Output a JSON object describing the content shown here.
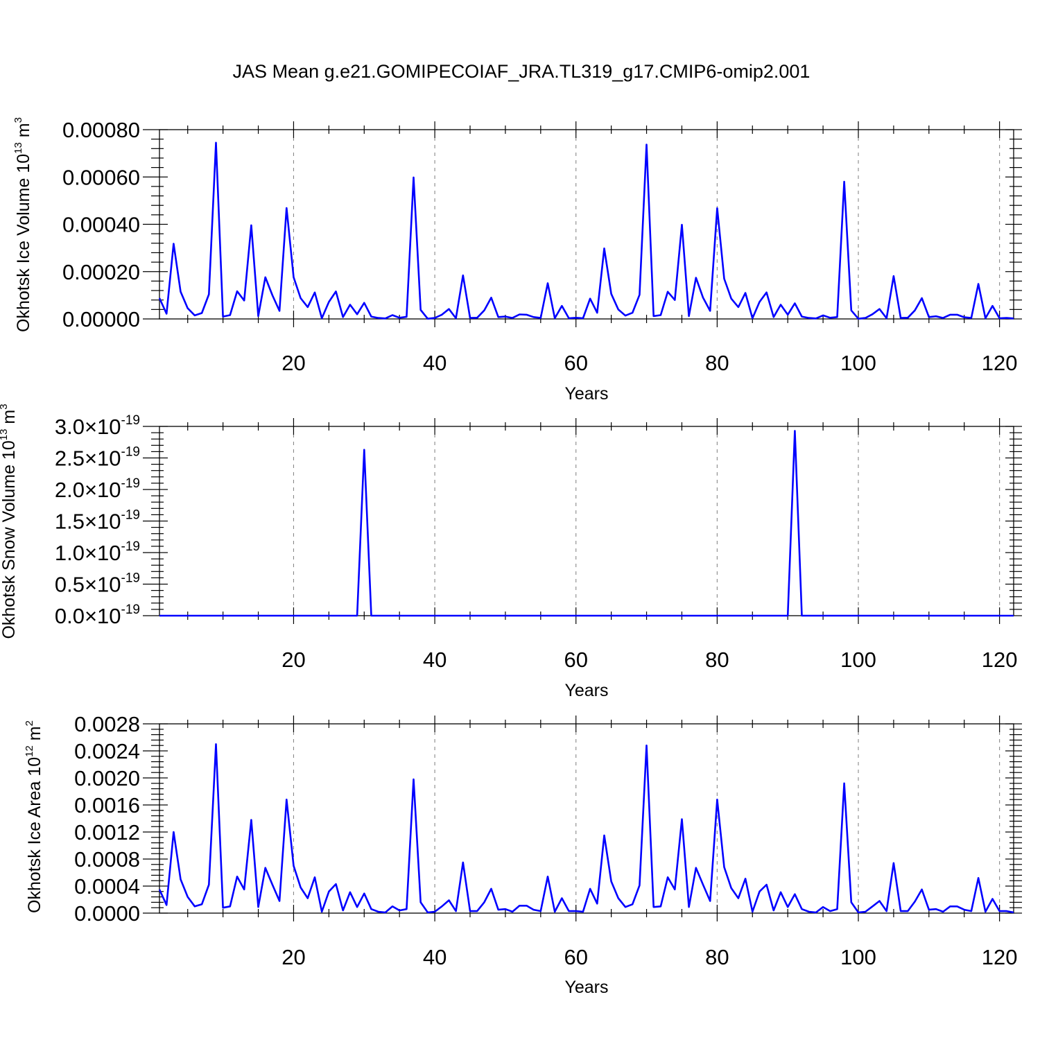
{
  "title": "JAS Mean g.e21.GOMIPECOIAF_JRA.TL319_g17.CMIP6-omip2.001",
  "series_color": "#0000ff",
  "chart_data": [
    {
      "type": "line",
      "ylabel": "Okhotsk Ice Volume 10",
      "ylabel_exponent": "13",
      "ylabel_unit": "m",
      "ylabel_unit_exponent": "3",
      "xlabel": "Years",
      "xlim": [
        1,
        122
      ],
      "ylim": [
        0,
        0.0008
      ],
      "x_ticks": [
        20,
        40,
        60,
        80,
        100,
        120
      ],
      "x_tick_labels": [
        "20",
        "40",
        "60",
        "80",
        "100",
        "120"
      ],
      "y_ticks": [
        0,
        0.0002,
        0.0004,
        0.0006,
        0.0008
      ],
      "y_tick_labels": [
        "0.00000",
        "0.00020",
        "0.00040",
        "0.00060",
        "0.00080"
      ],
      "y_tick_exponent": "",
      "grid": "vertical dashed at x tick positions",
      "x": [
        1,
        2,
        3,
        4,
        5,
        6,
        7,
        8,
        9,
        10,
        11,
        12,
        13,
        14,
        15,
        16,
        17,
        18,
        19,
        20,
        21,
        22,
        23,
        24,
        25,
        26,
        27,
        28,
        29,
        30,
        31,
        32,
        33,
        34,
        35,
        36,
        37,
        38,
        39,
        40,
        41,
        42,
        43,
        44,
        45,
        46,
        47,
        48,
        49,
        50,
        51,
        52,
        53,
        54,
        55,
        56,
        57,
        58,
        59,
        60,
        61,
        62,
        63,
        64,
        65,
        66,
        67,
        68,
        69,
        70,
        71,
        72,
        73,
        74,
        75,
        76,
        77,
        78,
        79,
        80,
        81,
        82,
        83,
        84,
        85,
        86,
        87,
        88,
        89,
        90,
        91,
        92,
        93,
        94,
        95,
        96,
        97,
        98,
        99,
        100,
        101,
        102,
        103,
        104,
        105,
        106,
        107,
        108,
        109,
        110,
        111,
        112,
        113,
        114,
        115,
        116,
        117,
        118,
        119,
        120,
        121,
        122
      ],
      "y": [
        8.8e-05,
        2.2e-05,
        0.000318,
        0.000115,
        4.5e-05,
        1.5e-05,
        2.5e-05,
        0.000104,
        0.000745,
        1e-05,
        1.6e-05,
        0.000117,
        7.8e-05,
        0.000396,
        1.2e-05,
        0.000176,
        0.0001,
        3.4e-05,
        0.000469,
        0.000176,
        8.8e-05,
        5e-05,
        0.000112,
        3e-06,
        7.2e-05,
        0.000116,
        8e-06,
        6e-05,
        2e-05,
        6.8e-05,
        1e-05,
        4e-06,
        2e-06,
        1.6e-05,
        5e-06,
        9e-06,
        0.000598,
        3.8e-05,
        1e-06,
        4e-06,
        1.8e-05,
        4.2e-05,
        3e-06,
        0.000184,
        4e-06,
        5e-06,
        3.6e-05,
        9e-05,
        8e-06,
        1e-05,
        4e-06,
        1.9e-05,
        1.8e-05,
        8e-06,
        4e-06,
        0.000151,
        3e-06,
        5.5e-05,
        3e-06,
        5e-06,
        3e-06,
        8.6e-05,
        2.6e-05,
        0.000298,
        0.000106,
        4e-05,
        1.4e-05,
        2.6e-05,
        0.000102,
        0.000737,
        1.2e-05,
        1.6e-05,
        0.000115,
        8e-05,
        0.000398,
        1.2e-05,
        0.000174,
        9e-05,
        3.4e-05,
        0.000468,
        0.00017,
        8.6e-05,
        5e-05,
        0.00011,
        3e-06,
        7.2e-05,
        0.000112,
        8e-06,
        6e-05,
        1.8e-05,
        6.6e-05,
        1e-05,
        4e-06,
        2e-06,
        1.5e-05,
        5e-06,
        8e-06,
        0.00058,
        3.6e-05,
        1e-06,
        4e-06,
        2e-05,
        4.2e-05,
        3e-06,
        0.000181,
        4e-06,
        5e-06,
        3.6e-05,
        8.8e-05,
        8e-06,
        1.1e-05,
        4e-06,
        1.8e-05,
        1.8e-05,
        7e-06,
        4e-06,
        0.000148,
        3e-06,
        5.5e-05,
        3e-06,
        4e-06,
        2e-06
      ]
    },
    {
      "type": "line",
      "ylabel": "Okhotsk Snow Volume 10",
      "ylabel_exponent": "13",
      "ylabel_unit": "m",
      "ylabel_unit_exponent": "3",
      "xlabel": "Years",
      "xlim": [
        1,
        122
      ],
      "ylim": [
        0,
        3e-19
      ],
      "x_ticks": [
        20,
        40,
        60,
        80,
        100,
        120
      ],
      "x_tick_labels": [
        "20",
        "40",
        "60",
        "80",
        "100",
        "120"
      ],
      "y_ticks": [
        0,
        5e-20,
        1e-19,
        1.5e-19,
        2e-19,
        2.5e-19,
        3e-19
      ],
      "y_tick_labels": [
        "0.0×10",
        "0.5×10",
        "1.0×10",
        "1.5×10",
        "2.0×10",
        "2.5×10",
        "3.0×10"
      ],
      "y_tick_exponent": "-19",
      "grid": "vertical dashed at x tick positions",
      "x": [
        1,
        29,
        30,
        31,
        90,
        91,
        92,
        122
      ],
      "y": [
        0,
        0,
        2.63e-19,
        0,
        0,
        2.93e-19,
        0,
        0
      ]
    },
    {
      "type": "line",
      "ylabel": "Okhotsk Ice Area 10",
      "ylabel_exponent": "12",
      "ylabel_unit": "m",
      "ylabel_unit_exponent": "2",
      "xlabel": "Years",
      "xlim": [
        1,
        122
      ],
      "ylim": [
        0,
        0.0028
      ],
      "x_ticks": [
        20,
        40,
        60,
        80,
        100,
        120
      ],
      "x_tick_labels": [
        "20",
        "40",
        "60",
        "80",
        "100",
        "120"
      ],
      "y_ticks": [
        0,
        0.0004,
        0.0008,
        0.0012,
        0.0016,
        0.002,
        0.0024,
        0.0028
      ],
      "y_tick_labels": [
        "0.0000",
        "0.0004",
        "0.0008",
        "0.0012",
        "0.0016",
        "0.0020",
        "0.0024",
        "0.0028"
      ],
      "y_tick_exponent": "",
      "grid": "vertical dashed at x tick positions",
      "x": [
        1,
        2,
        3,
        4,
        5,
        6,
        7,
        8,
        9,
        10,
        11,
        12,
        13,
        14,
        15,
        16,
        17,
        18,
        19,
        20,
        21,
        22,
        23,
        24,
        25,
        26,
        27,
        28,
        29,
        30,
        31,
        32,
        33,
        34,
        35,
        36,
        37,
        38,
        39,
        40,
        41,
        42,
        43,
        44,
        45,
        46,
        47,
        48,
        49,
        50,
        51,
        52,
        53,
        54,
        55,
        56,
        57,
        58,
        59,
        60,
        61,
        62,
        63,
        64,
        65,
        66,
        67,
        68,
        69,
        70,
        71,
        72,
        73,
        74,
        75,
        76,
        77,
        78,
        79,
        80,
        81,
        82,
        83,
        84,
        85,
        86,
        87,
        88,
        89,
        90,
        91,
        92,
        93,
        94,
        95,
        96,
        97,
        98,
        99,
        100,
        101,
        102,
        103,
        104,
        105,
        106,
        107,
        108,
        109,
        110,
        111,
        112,
        113,
        114,
        115,
        116,
        117,
        118,
        119,
        120,
        121,
        122
      ],
      "y": [
        0.00035,
        0.00012,
        0.0012,
        0.0005,
        0.00024,
        0.0001,
        0.00013,
        0.00042,
        0.0025,
        8e-05,
        0.0001,
        0.00054,
        0.00035,
        0.00138,
        9e-05,
        0.00067,
        0.00042,
        0.00018,
        0.00168,
        0.0007,
        0.00038,
        0.00022,
        0.00053,
        2e-05,
        0.00032,
        0.00043,
        4e-05,
        0.00031,
        9e-05,
        0.00029,
        6e-05,
        2e-05,
        1e-05,
        0.0001,
        4e-05,
        6e-05,
        0.00198,
        0.00016,
        1e-05,
        2e-05,
        0.0001,
        0.00019,
        3e-05,
        0.00075,
        3e-05,
        3e-05,
        0.00016,
        0.00036,
        5e-05,
        6e-05,
        2e-05,
        0.00011,
        0.00011,
        5e-05,
        3e-05,
        0.00054,
        2e-05,
        0.00022,
        3e-05,
        3e-05,
        2e-05,
        0.00036,
        0.00014,
        0.00115,
        0.00047,
        0.00022,
        9e-05,
        0.00013,
        0.00041,
        0.00248,
        9e-05,
        0.0001,
        0.00053,
        0.00035,
        0.00139,
        9e-05,
        0.00067,
        0.00042,
        0.00018,
        0.00168,
        0.00068,
        0.00037,
        0.00022,
        0.00051,
        2e-05,
        0.00032,
        0.00042,
        4e-05,
        0.00031,
        9e-05,
        0.00028,
        6e-05,
        2e-05,
        1e-05,
        9e-05,
        3e-05,
        6e-05,
        0.00192,
        0.00016,
        1e-05,
        2e-05,
        0.0001,
        0.00018,
        3e-05,
        0.00074,
        3e-05,
        3e-05,
        0.00017,
        0.00035,
        5e-05,
        6e-05,
        2e-05,
        0.0001,
        0.0001,
        5e-05,
        3e-05,
        0.00052,
        2e-05,
        0.00021,
        3e-05,
        3e-05,
        1e-05
      ]
    }
  ]
}
